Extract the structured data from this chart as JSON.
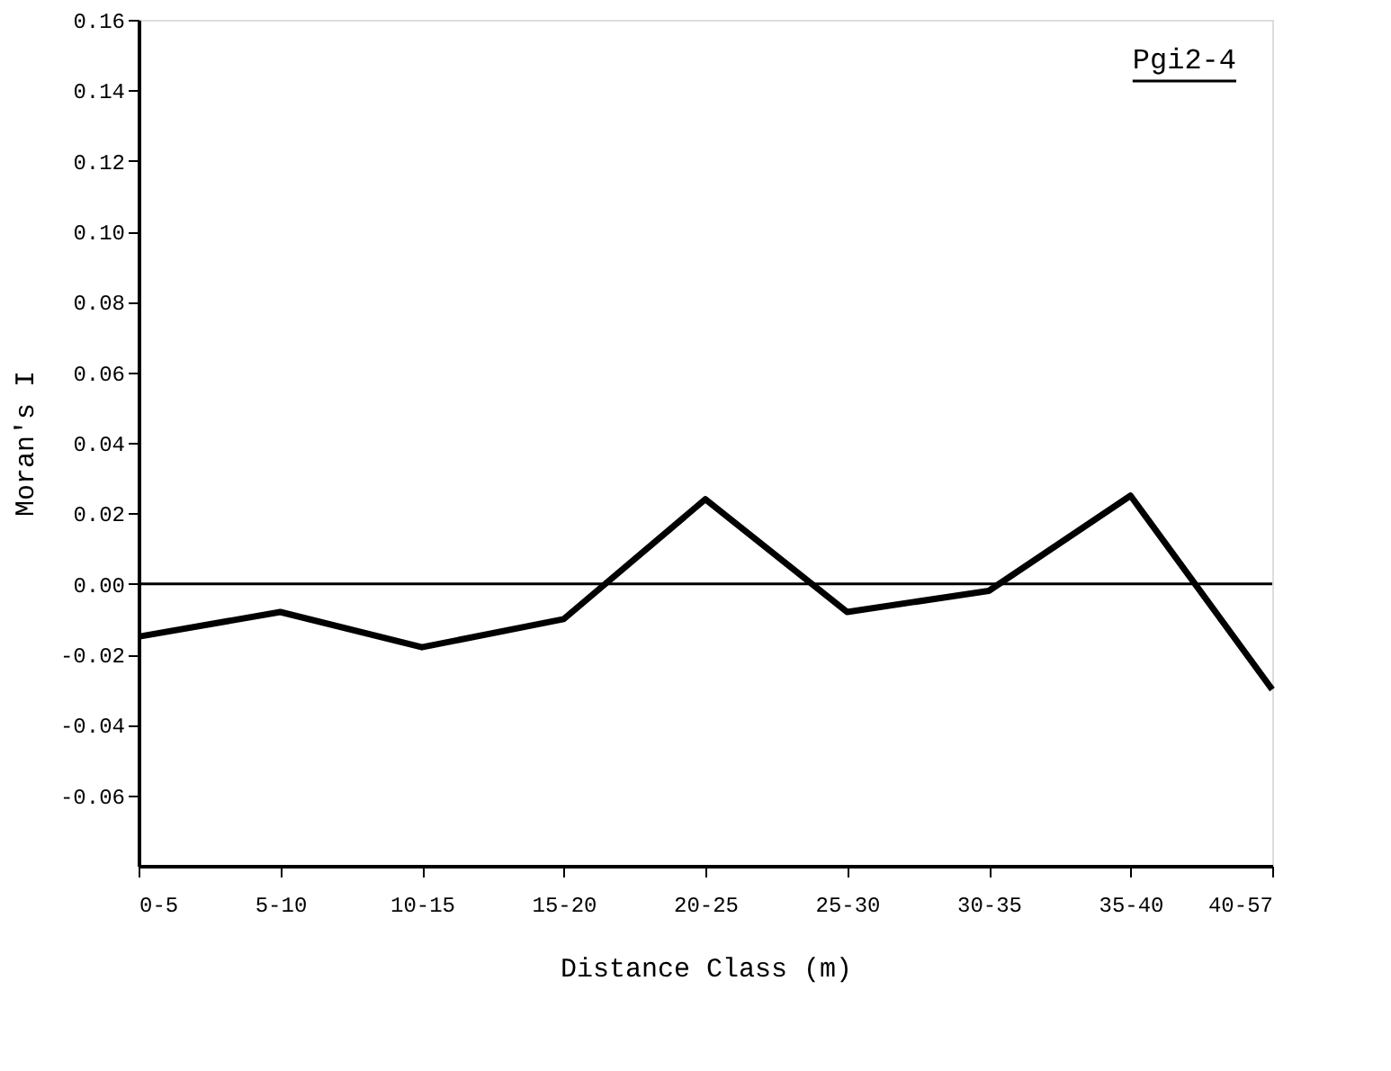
{
  "chart_data": {
    "type": "line",
    "categories": [
      "0-5",
      "5-10",
      "10-15",
      "15-20",
      "20-25",
      "25-30",
      "30-35",
      "35-40",
      "40-57"
    ],
    "series": [
      {
        "color": "#000000",
        "values": [
          -0.015,
          -0.008,
          -0.018,
          -0.01,
          0.024,
          -0.008,
          -0.002,
          0.025,
          -0.03
        ]
      }
    ],
    "xlabel": "Distance Class (m)",
    "ylabel": "Moran's I",
    "ylim": [
      -0.08,
      0.16
    ],
    "yticks": [
      -0.06,
      -0.04,
      -0.02,
      {
        "value": 0,
        "label": "0.00"
      },
      0.02,
      0.04,
      0.06,
      0.08,
      {
        "value": 0.1,
        "label": "0.10"
      },
      0.12,
      0.14,
      0.16
    ],
    "ref_lines": [
      {
        "axis": "y",
        "value": 0,
        "color": "#000000"
      }
    ],
    "annotations": [
      "Pgi2-4"
    ],
    "grid": false,
    "legend": false,
    "marker": "none",
    "line_style": "solid"
  }
}
